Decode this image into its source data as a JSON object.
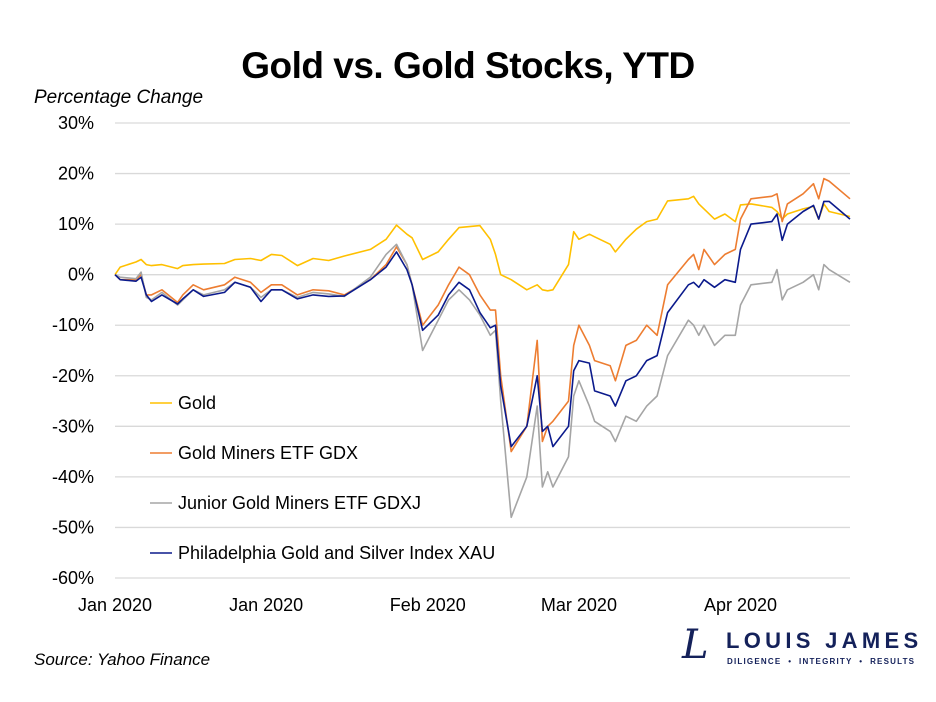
{
  "chart_data": {
    "type": "line",
    "title": "Gold vs. Gold Stocks, YTD",
    "ylabel": "Percentage Change",
    "xlabel": "",
    "source": "Source: Yahoo Finance",
    "ylim": [
      -60,
      30
    ],
    "yticks": [
      30,
      20,
      10,
      0,
      -10,
      -20,
      -30,
      -40,
      -50,
      -60
    ],
    "ytick_format": "percent",
    "xlim": [
      "2019-12-03",
      "2020-04-22"
    ],
    "xticks": [
      {
        "date": "2019-12-03",
        "label": "Jan 2020"
      },
      {
        "date": "2020-01-01",
        "label": "Jan 2020"
      },
      {
        "date": "2020-02-01",
        "label": "Feb 2020"
      },
      {
        "date": "2020-03-01",
        "label": "Mar 2020"
      },
      {
        "date": "2020-04-01",
        "label": "Apr 2020"
      }
    ],
    "grid": "horizontal",
    "legend": "inside-bottom-left",
    "x": [
      "2019-12-03",
      "2019-12-04",
      "2019-12-07",
      "2019-12-08",
      "2019-12-09",
      "2019-12-10",
      "2019-12-12",
      "2019-12-15",
      "2019-12-16",
      "2019-12-18",
      "2019-12-20",
      "2019-12-24",
      "2019-12-26",
      "2019-12-29",
      "2019-12-31",
      "2020-01-02",
      "2020-01-04",
      "2020-01-07",
      "2020-01-10",
      "2020-01-13",
      "2020-01-16",
      "2020-01-21",
      "2020-01-24",
      "2020-01-26",
      "2020-01-28",
      "2020-01-29",
      "2020-01-31",
      "2020-02-03",
      "2020-02-05",
      "2020-02-07",
      "2020-02-09",
      "2020-02-11",
      "2020-02-13",
      "2020-02-14",
      "2020-02-15",
      "2020-02-17",
      "2020-02-20",
      "2020-02-22",
      "2020-02-23",
      "2020-02-24",
      "2020-02-25",
      "2020-02-28",
      "2020-02-29",
      "2020-03-01",
      "2020-03-03",
      "2020-03-04",
      "2020-03-07",
      "2020-03-08",
      "2020-03-10",
      "2020-03-12",
      "2020-03-14",
      "2020-03-16",
      "2020-03-18",
      "2020-03-22",
      "2020-03-23",
      "2020-03-24",
      "2020-03-25",
      "2020-03-27",
      "2020-03-29",
      "2020-03-31",
      "2020-04-01",
      "2020-04-03",
      "2020-04-07",
      "2020-04-08",
      "2020-04-09",
      "2020-04-10",
      "2020-04-13",
      "2020-04-15",
      "2020-04-16",
      "2020-04-17",
      "2020-04-18",
      "2020-04-22"
    ],
    "series": [
      {
        "name": "Gold",
        "color": "#ffc000",
        "values": [
          0,
          1.5,
          2.5,
          3,
          2,
          1.8,
          2,
          1.2,
          1.8,
          2,
          2.1,
          2.2,
          3,
          3.2,
          2.8,
          4,
          3.8,
          1.8,
          3.2,
          2.8,
          3.7,
          5,
          7,
          9.8,
          8,
          7.3,
          3,
          4.5,
          7,
          9.3,
          9.5,
          9.7,
          7,
          4,
          0,
          -1,
          -3,
          -2,
          -3,
          -3.2,
          -3,
          2,
          8.5,
          7,
          8,
          7.5,
          6,
          4.5,
          7,
          9,
          10.5,
          11,
          14.6,
          15,
          15.5,
          14,
          13,
          11,
          12,
          10.5,
          13.8,
          14,
          13.3,
          12.5,
          11,
          12,
          13,
          13.5,
          11,
          14,
          12.5,
          11.5
        ]
      },
      {
        "name": "Gold Miners ETF GDX",
        "color": "#ed7d31",
        "values": [
          0,
          -1,
          -1,
          0,
          -4,
          -4,
          -3,
          -5.5,
          -4,
          -2,
          -3,
          -2,
          -0.5,
          -1.5,
          -3.5,
          -2,
          -2,
          -4,
          -3,
          -3.2,
          -4,
          -1,
          2,
          5.5,
          2,
          -2,
          -10,
          -6,
          -2,
          1.5,
          0,
          -4,
          -7,
          -7,
          -20,
          -35,
          -30,
          -13,
          -33,
          -30,
          -29,
          -25,
          -14,
          -10,
          -14,
          -17,
          -18,
          -21,
          -14,
          -13,
          -10,
          -12,
          -2,
          3,
          4,
          1,
          5,
          2,
          4,
          5,
          11,
          15,
          15.5,
          16,
          10.5,
          14,
          16,
          18,
          15,
          19,
          18.5,
          15
        ]
      },
      {
        "name": "Junior Gold Miners ETF GDXJ",
        "color": "#a5a5a5",
        "values": [
          0,
          -0.5,
          -0.8,
          0.5,
          -4.5,
          -5,
          -3.5,
          -6,
          -5,
          -3,
          -4,
          -3,
          -1.5,
          -2.5,
          -4.5,
          -3,
          -3,
          -4.5,
          -3.5,
          -3.8,
          -4.3,
          -0.5,
          4,
          6,
          2,
          -2,
          -15,
          -9,
          -5,
          -3,
          -5,
          -8,
          -12,
          -11,
          -25,
          -48,
          -40,
          -26,
          -42,
          -39,
          -42,
          -36,
          -24,
          -21,
          -26,
          -29,
          -31,
          -33,
          -28,
          -29,
          -26,
          -24,
          -16,
          -9,
          -10,
          -12,
          -10,
          -14,
          -12,
          -12,
          -6,
          -2,
          -1.5,
          1,
          -5,
          -3,
          -1.5,
          0,
          -3,
          2,
          1,
          -1.5
        ]
      },
      {
        "name": "Philadelphia Gold and Silver Index XAU",
        "color": "#0b1a8c",
        "values": [
          0,
          -1,
          -1.3,
          -0.5,
          -4,
          -5.3,
          -4,
          -5.8,
          -4.8,
          -3,
          -4.3,
          -3.5,
          -1.5,
          -2.5,
          -5.3,
          -3,
          -3,
          -4.8,
          -4,
          -4.3,
          -4.2,
          -1,
          1.5,
          4.5,
          1,
          -2,
          -11,
          -8,
          -4,
          -1.5,
          -3,
          -7.5,
          -10.5,
          -10,
          -22,
          -34,
          -30,
          -20,
          -31,
          -30,
          -34,
          -30,
          -19,
          -17,
          -17.5,
          -23,
          -24,
          -26,
          -21,
          -20,
          -17,
          -16,
          -7.5,
          -2,
          -1.5,
          -2.5,
          -1,
          -2.5,
          -1,
          -1.5,
          5,
          10,
          10.5,
          12,
          6.8,
          10,
          12.5,
          13.7,
          11,
          14.5,
          14.5,
          11
        ]
      }
    ]
  },
  "logo": {
    "mark": "L",
    "name": "LOUIS JAMES",
    "tagline": "DILIGENCE  •  INTEGRITY  •  RESULTS"
  }
}
